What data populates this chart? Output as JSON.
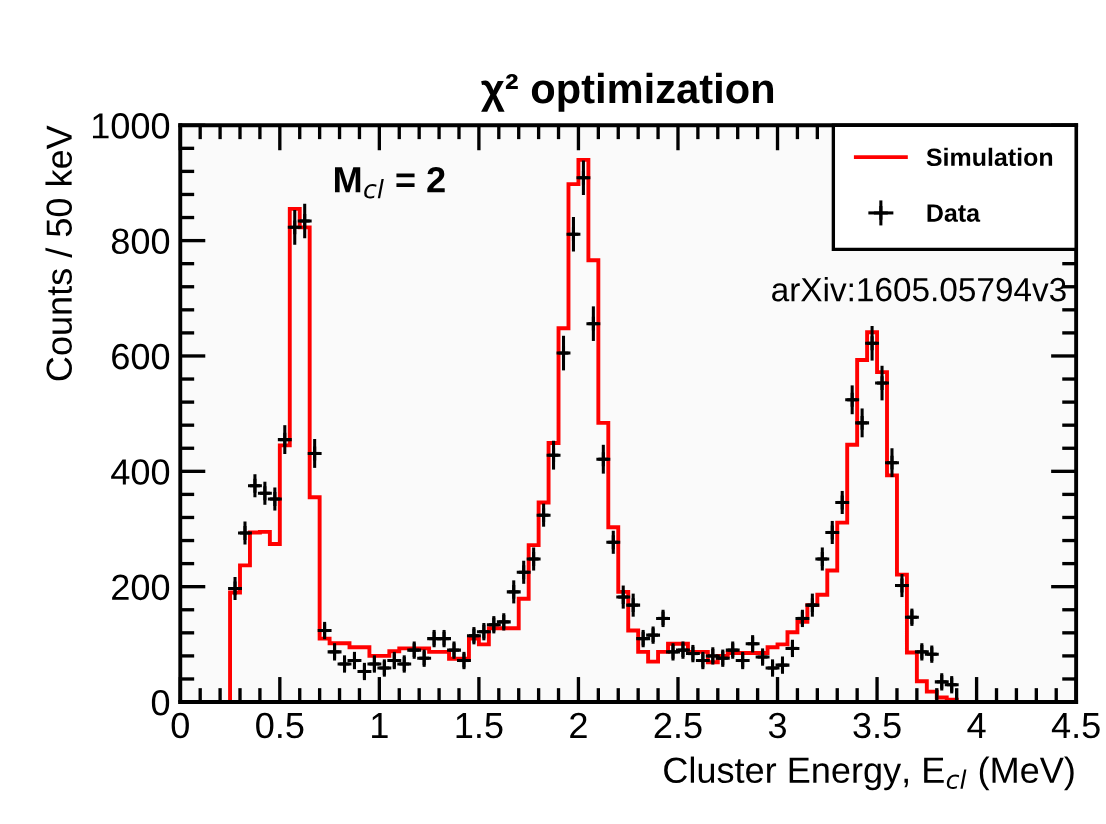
{
  "chart_data": {
    "type": "histogram",
    "title": "χ² optimization",
    "xlabel": "Cluster Energy, E$_{cl}$ (MeV)",
    "ylabel": "Counts / 50 keV",
    "annotations": [
      "M$_{cl}$ = 2",
      "arXiv:1605.05794v3"
    ],
    "xlim": [
      0,
      4.5
    ],
    "xticks": [
      0,
      0.5,
      1,
      1.5,
      2,
      2.5,
      3,
      3.5,
      4,
      4.5
    ],
    "ylim": [
      0,
      1000
    ],
    "yticks": [
      0,
      200,
      400,
      600,
      800,
      1000
    ],
    "grid": false,
    "legend": "top right",
    "series": [
      {
        "name": "Simulation",
        "type": "histogram",
        "color": "#ff0000",
        "bins": [
          0.25,
          0.3,
          0.35,
          0.4,
          0.45,
          0.5,
          0.55,
          0.6,
          0.65,
          0.7,
          0.75,
          0.8,
          0.85,
          0.9,
          0.95,
          1.0,
          1.05,
          1.1,
          1.15,
          1.2,
          1.25,
          1.3,
          1.35,
          1.4,
          1.45,
          1.5,
          1.55,
          1.6,
          1.65,
          1.7,
          1.75,
          1.8,
          1.85,
          1.9,
          1.95,
          2.0,
          2.05,
          2.1,
          2.15,
          2.2,
          2.25,
          2.3,
          2.35,
          2.4,
          2.45,
          2.5,
          2.55,
          2.6,
          2.65,
          2.7,
          2.75,
          2.8,
          2.85,
          2.9,
          2.95,
          3.0,
          3.05,
          3.1,
          3.15,
          3.2,
          3.25,
          3.3,
          3.35,
          3.4,
          3.45,
          3.5,
          3.55,
          3.6,
          3.65,
          3.7,
          3.75,
          3.8,
          3.85,
          3.9
        ],
        "values": [
          190,
          237,
          294,
          295,
          274,
          445,
          855,
          823,
          355,
          110,
          102,
          102,
          95,
          95,
          80,
          80,
          88,
          93,
          93,
          93,
          87,
          87,
          75,
          75,
          110,
          100,
          128,
          128,
          128,
          179,
          272,
          346,
          449,
          648,
          898,
          940,
          766,
          484,
          303,
          191,
          124,
          87,
          70,
          87,
          101,
          101,
          87,
          87,
          69,
          80,
          85,
          85,
          85,
          85,
          95,
          100,
          121,
          139,
          168,
          186,
          228,
          311,
          446,
          593,
          641,
          572,
          393,
          221,
          86,
          36,
          18,
          8,
          4
        ]
      },
      {
        "name": "Data",
        "type": "scatter",
        "color": "#000000",
        "marker": "cross",
        "x": [
          0.275,
          0.325,
          0.375,
          0.425,
          0.475,
          0.525,
          0.575,
          0.625,
          0.675,
          0.725,
          0.775,
          0.825,
          0.875,
          0.925,
          0.975,
          1.025,
          1.075,
          1.125,
          1.175,
          1.225,
          1.275,
          1.325,
          1.375,
          1.425,
          1.475,
          1.525,
          1.575,
          1.625,
          1.675,
          1.725,
          1.775,
          1.825,
          1.875,
          1.925,
          1.975,
          2.025,
          2.075,
          2.125,
          2.175,
          2.225,
          2.275,
          2.325,
          2.375,
          2.425,
          2.475,
          2.525,
          2.575,
          2.625,
          2.675,
          2.725,
          2.775,
          2.825,
          2.875,
          2.925,
          2.975,
          3.025,
          3.075,
          3.125,
          3.175,
          3.225,
          3.275,
          3.325,
          3.375,
          3.425,
          3.475,
          3.525,
          3.575,
          3.625,
          3.675,
          3.725,
          3.775,
          3.825,
          3.875
        ],
        "values": [
          197,
          293,
          375,
          362,
          352,
          455,
          823,
          834,
          431,
          124,
          87,
          66,
          72,
          53,
          66,
          59,
          72,
          66,
          90,
          76,
          110,
          110,
          90,
          72,
          115,
          122,
          134,
          139,
          191,
          225,
          248,
          324,
          428,
          605,
          811,
          909,
          656,
          421,
          277,
          182,
          168,
          110,
          116,
          145,
          87,
          90,
          84,
          72,
          80,
          76,
          90,
          72,
          101,
          78,
          59,
          64,
          93,
          145,
          168,
          248,
          294,
          346,
          524,
          484,
          622,
          553,
          415,
          202,
          147,
          87,
          83,
          35,
          30
        ],
        "errors": [
          20,
          20,
          20,
          20,
          20,
          25,
          30,
          30,
          25,
          15,
          15,
          15,
          15,
          15,
          15,
          15,
          15,
          15,
          15,
          15,
          15,
          15,
          15,
          15,
          15,
          15,
          15,
          15,
          20,
          20,
          20,
          20,
          25,
          30,
          30,
          30,
          30,
          25,
          20,
          20,
          20,
          15,
          15,
          15,
          15,
          15,
          15,
          15,
          15,
          15,
          15,
          15,
          15,
          15,
          15,
          15,
          15,
          15,
          20,
          20,
          20,
          20,
          25,
          25,
          30,
          30,
          25,
          20,
          15,
          15,
          15,
          15,
          15
        ],
        "xerrors": [
          0.025,
          0.025,
          0.025,
          0.025,
          0.025,
          0.025,
          0.025,
          0.025,
          0.025,
          0.025,
          0.025,
          0.025,
          0.025,
          0.025,
          0.025,
          0.025,
          0.025,
          0.025,
          0.025,
          0.025,
          0.025,
          0.025,
          0.025,
          0.025,
          0.025,
          0.025,
          0.025,
          0.025,
          0.025,
          0.025,
          0.025,
          0.025,
          0.025,
          0.025,
          0.025,
          0.025,
          0.025,
          0.025,
          0.025,
          0.025,
          0.025,
          0.025,
          0.025,
          0.025,
          0.025,
          0.025,
          0.025,
          0.025,
          0.025,
          0.025,
          0.025,
          0.025,
          0.025,
          0.025,
          0.025,
          0.025,
          0.025,
          0.025,
          0.025,
          0.025,
          0.025,
          0.025,
          0.025,
          0.025,
          0.025,
          0.025,
          0.025,
          0.025,
          0.025,
          0.025,
          0.025,
          0.025,
          0.025
        ]
      }
    ]
  }
}
